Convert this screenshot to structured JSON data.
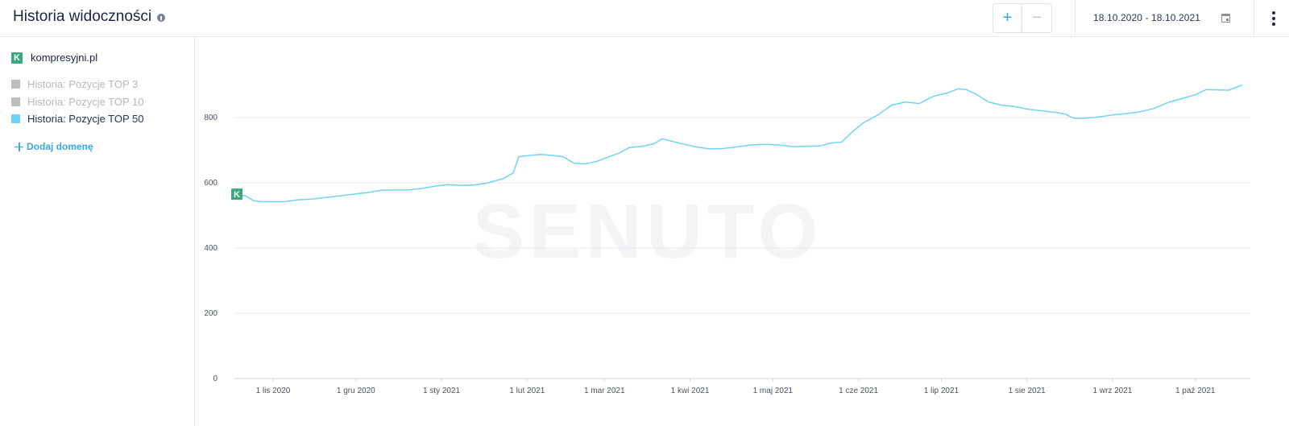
{
  "header": {
    "title": "Historia widoczności",
    "zoom_in_label": "+",
    "zoom_out_label": "−",
    "date_range": "18.10.2020 - 18.10.2021"
  },
  "sidebar": {
    "domain": "kompresyjni.pl",
    "logo_letter": "K",
    "legend": [
      {
        "label": "Historia: Pozycje TOP 3",
        "color": "#bdbdbd",
        "text_color": "#b5b8c0"
      },
      {
        "label": "Historia: Pozycje TOP 10",
        "color": "#bdbdbd",
        "text_color": "#b5b8c0"
      },
      {
        "label": "Historia: Pozycje TOP 50",
        "color": "#6fd3f7",
        "text_color": "#2a3350"
      }
    ],
    "add_domain_label": "Dodaj domenę"
  },
  "watermark": "SENUTO",
  "chart_data": {
    "type": "line",
    "title": "",
    "xlabel": "",
    "ylabel": "",
    "ylim": [
      0,
      800
    ],
    "yticks": [
      "0",
      "200",
      "400",
      "600",
      "800"
    ],
    "xticks": [
      "1 lis 2020",
      "1 gru 2020",
      "1 sty 2021",
      "1 lut 2021",
      "1 mar 2021",
      "1 kwi 2021",
      "1 maj 2021",
      "1 cze 2021",
      "1 lip 2021",
      "1 sie 2021",
      "1 wrz 2021",
      "1 paź 2021"
    ],
    "grid": true,
    "series": [
      {
        "name": "Historia: Pozycje TOP 50",
        "color": "#6fd3f7",
        "points": [
          [
            "2020-10-18",
            565
          ],
          [
            "2020-10-22",
            560
          ],
          [
            "2020-10-25",
            545
          ],
          [
            "2020-10-28",
            542
          ],
          [
            "2020-11-01",
            542
          ],
          [
            "2020-11-05",
            542
          ],
          [
            "2020-11-10",
            548
          ],
          [
            "2020-11-15",
            550
          ],
          [
            "2020-11-20",
            555
          ],
          [
            "2020-11-25",
            560
          ],
          [
            "2020-12-01",
            566
          ],
          [
            "2020-12-05",
            570
          ],
          [
            "2020-12-10",
            577
          ],
          [
            "2020-12-15",
            578
          ],
          [
            "2020-12-20",
            578
          ],
          [
            "2020-12-25",
            583
          ],
          [
            "2020-12-30",
            590
          ],
          [
            "2021-01-03",
            594
          ],
          [
            "2021-01-08",
            592
          ],
          [
            "2021-01-13",
            593
          ],
          [
            "2021-01-18",
            600
          ],
          [
            "2021-01-23",
            612
          ],
          [
            "2021-01-27",
            630
          ],
          [
            "2021-01-29",
            680
          ],
          [
            "2021-02-03",
            685
          ],
          [
            "2021-02-06",
            687
          ],
          [
            "2021-02-10",
            684
          ],
          [
            "2021-02-14",
            680
          ],
          [
            "2021-02-18",
            660
          ],
          [
            "2021-02-22",
            658
          ],
          [
            "2021-02-26",
            665
          ],
          [
            "2021-03-02",
            678
          ],
          [
            "2021-03-06",
            690
          ],
          [
            "2021-03-10",
            708
          ],
          [
            "2021-03-15",
            712
          ],
          [
            "2021-03-19",
            720
          ],
          [
            "2021-03-22",
            735
          ],
          [
            "2021-03-26",
            726
          ],
          [
            "2021-03-30",
            718
          ],
          [
            "2021-04-03",
            710
          ],
          [
            "2021-04-08",
            704
          ],
          [
            "2021-04-13",
            705
          ],
          [
            "2021-04-18",
            710
          ],
          [
            "2021-04-23",
            716
          ],
          [
            "2021-04-28",
            718
          ],
          [
            "2021-05-03",
            716
          ],
          [
            "2021-05-08",
            711
          ],
          [
            "2021-05-13",
            712
          ],
          [
            "2021-05-18",
            713
          ],
          [
            "2021-05-22",
            722
          ],
          [
            "2021-05-26",
            725
          ],
          [
            "2021-05-30",
            758
          ],
          [
            "2021-06-03",
            785
          ],
          [
            "2021-06-08",
            808
          ],
          [
            "2021-06-13",
            838
          ],
          [
            "2021-06-18",
            848
          ],
          [
            "2021-06-23",
            843
          ],
          [
            "2021-06-28",
            865
          ],
          [
            "2021-07-03",
            875
          ],
          [
            "2021-07-07",
            888
          ],
          [
            "2021-07-10",
            886
          ],
          [
            "2021-07-14",
            870
          ],
          [
            "2021-07-18",
            848
          ],
          [
            "2021-07-23",
            838
          ],
          [
            "2021-07-28",
            833
          ],
          [
            "2021-08-02",
            825
          ],
          [
            "2021-08-07",
            820
          ],
          [
            "2021-08-12",
            815
          ],
          [
            "2021-08-15",
            810
          ],
          [
            "2021-08-18",
            798
          ],
          [
            "2021-08-22",
            798
          ],
          [
            "2021-08-27",
            802
          ],
          [
            "2021-09-01",
            808
          ],
          [
            "2021-09-06",
            812
          ],
          [
            "2021-09-11",
            818
          ],
          [
            "2021-09-16",
            828
          ],
          [
            "2021-09-21",
            846
          ],
          [
            "2021-09-26",
            858
          ],
          [
            "2021-10-01",
            870
          ],
          [
            "2021-10-05",
            886
          ],
          [
            "2021-10-09",
            885
          ],
          [
            "2021-10-13",
            884
          ],
          [
            "2021-10-18",
            900
          ]
        ]
      }
    ]
  }
}
